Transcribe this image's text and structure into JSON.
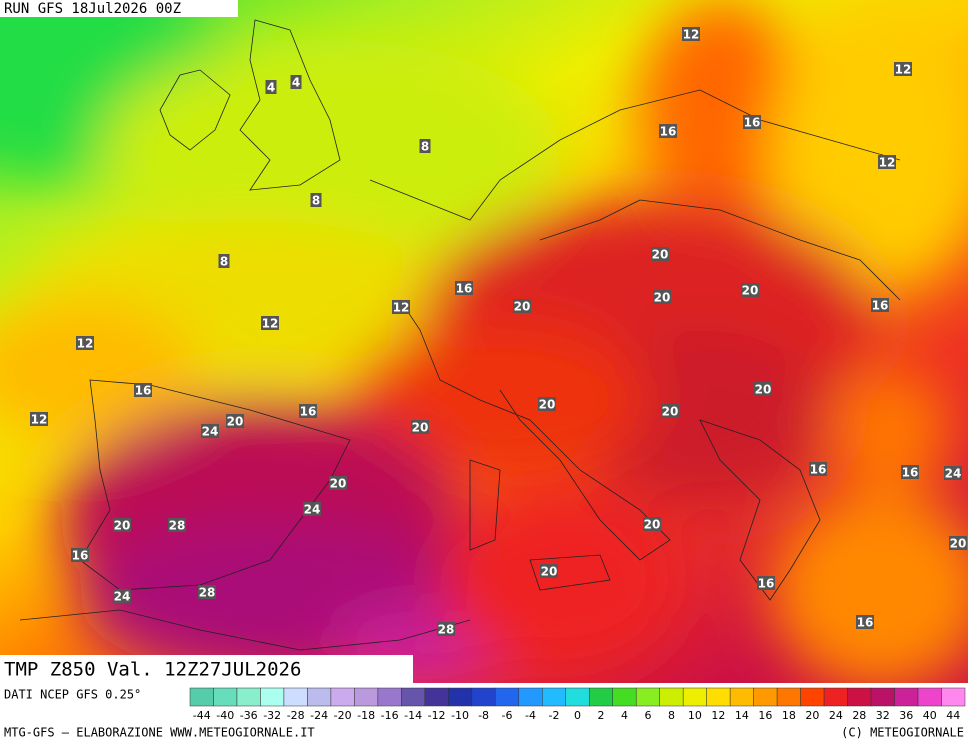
{
  "header": {
    "run": "RUN GFS 18Jul2026 00Z"
  },
  "map": {
    "title": "TMP Z850 Val. 12Z27JUL2026",
    "contour_labels": [
      12,
      12,
      4,
      4,
      16,
      16,
      8,
      12,
      8,
      20,
      8,
      16,
      20,
      20,
      20,
      12,
      16,
      12,
      12,
      16,
      20,
      16,
      20,
      20,
      20,
      24,
      12,
      20,
      16,
      16,
      24,
      20,
      24,
      20,
      28,
      20,
      20,
      16,
      20,
      16,
      24,
      28,
      16,
      28
    ]
  },
  "legend": {
    "source": "DATI NCEP GFS 0.25°",
    "ticks": [
      -44,
      -40,
      -36,
      -32,
      -28,
      -24,
      -20,
      -18,
      -16,
      -14,
      -12,
      -10,
      -8,
      -6,
      -4,
      -2,
      0,
      2,
      4,
      6,
      8,
      10,
      12,
      14,
      16,
      18,
      20,
      24,
      28,
      32,
      36,
      40,
      44
    ]
  },
  "footer": {
    "left": "MTG-GFS — ELABORAZIONE WWW.METEOGIORNALE.IT",
    "right": "(C) METEOGIORNALE"
  }
}
